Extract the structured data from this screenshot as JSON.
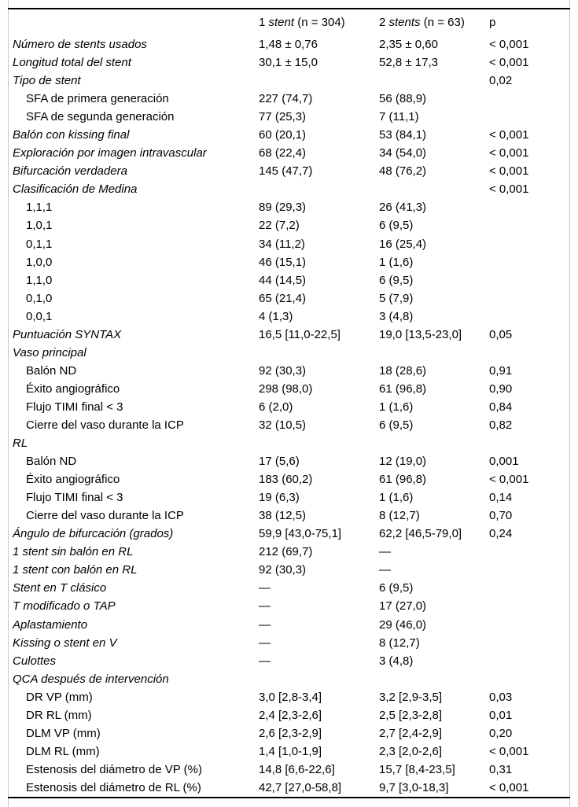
{
  "table": {
    "columns": {
      "group1": {
        "pre": "1 ",
        "italic": "stent",
        "post": " (n = 304)"
      },
      "group2": {
        "pre": "2 ",
        "italic": "stents",
        "post": " (n = 63)"
      },
      "p": "p"
    },
    "rows": [
      {
        "style": "main",
        "label": "Número de stents usados",
        "v1": "1,48 ± 0,76",
        "v2": "2,35 ± 0,60",
        "p": "< 0,001"
      },
      {
        "style": "main",
        "label": "Longitud total del stent",
        "v1": "30,1 ± 15,0",
        "v2": "52,8 ± 17,3",
        "p": "< 0,001"
      },
      {
        "style": "main",
        "label": "Tipo de stent",
        "v1": "",
        "v2": "",
        "p": "0,02"
      },
      {
        "style": "sub",
        "label": "SFA de primera generación",
        "v1": "227 (74,7)",
        "v2": "56 (88,9)",
        "p": ""
      },
      {
        "style": "sub",
        "label": "SFA de segunda generación",
        "v1": "77 (25,3)",
        "v2": "7 (11,1)",
        "p": ""
      },
      {
        "style": "main",
        "label": "Balón con kissing final",
        "v1": "60 (20,1)",
        "v2": "53 (84,1)",
        "p": "< 0,001"
      },
      {
        "style": "main",
        "label": "Exploración por imagen intravascular",
        "v1": "68 (22,4)",
        "v2": "34 (54,0)",
        "p": "< 0,001"
      },
      {
        "style": "main",
        "label": "Bifurcación verdadera",
        "v1": "145 (47,7)",
        "v2": "48 (76,2)",
        "p": "< 0,001"
      },
      {
        "style": "main",
        "label": "Clasificación de Medina",
        "v1": "",
        "v2": "",
        "p": "< 0,001"
      },
      {
        "style": "sub",
        "label": "1,1,1",
        "v1": "89 (29,3)",
        "v2": "26 (41,3)",
        "p": ""
      },
      {
        "style": "sub",
        "label": "1,0,1",
        "v1": "22 (7,2)",
        "v2": "6 (9,5)",
        "p": ""
      },
      {
        "style": "sub",
        "label": "0,1,1",
        "v1": "34 (11,2)",
        "v2": "16 (25,4)",
        "p": ""
      },
      {
        "style": "sub",
        "label": "1,0,0",
        "v1": "46 (15,1)",
        "v2": "1 (1,6)",
        "p": ""
      },
      {
        "style": "sub",
        "label": "1,1,0",
        "v1": "44 (14,5)",
        "v2": "6 (9,5)",
        "p": ""
      },
      {
        "style": "sub",
        "label": "0,1,0",
        "v1": "65 (21,4)",
        "v2": "5 (7,9)",
        "p": ""
      },
      {
        "style": "sub",
        "label": "0,0,1",
        "v1": "4 (1,3)",
        "v2": "3 (4,8)",
        "p": ""
      },
      {
        "style": "main",
        "label": "Puntuación SYNTAX",
        "v1": "16,5 [11,0-22,5]",
        "v2": "19,0 [13,5-23,0]",
        "p": "0,05"
      },
      {
        "style": "main",
        "label": "Vaso principal",
        "v1": "",
        "v2": "",
        "p": ""
      },
      {
        "style": "sub",
        "label": "Balón ND",
        "v1": "92 (30,3)",
        "v2": "18 (28,6)",
        "p": "0,91"
      },
      {
        "style": "sub",
        "label": "Éxito angiográfico",
        "v1": "298 (98,0)",
        "v2": "61 (96,8)",
        "p": "0,90"
      },
      {
        "style": "sub",
        "label": "Flujo TIMI final < 3",
        "v1": "6 (2,0)",
        "v2": "1 (1,6)",
        "p": "0,84"
      },
      {
        "style": "sub",
        "label": "Cierre del vaso durante la ICP",
        "v1": "32 (10,5)",
        "v2": "6 (9,5)",
        "p": "0,82"
      },
      {
        "style": "main",
        "label": "RL",
        "v1": "",
        "v2": "",
        "p": ""
      },
      {
        "style": "sub",
        "label": "Balón ND",
        "v1": "17 (5,6)",
        "v2": "12 (19,0)",
        "p": "0,001"
      },
      {
        "style": "sub",
        "label": "Éxito angiográfico",
        "v1": "183 (60,2)",
        "v2": "61 (96,8)",
        "p": "< 0,001"
      },
      {
        "style": "sub",
        "label": "Flujo TIMI final < 3",
        "v1": "19 (6,3)",
        "v2": "1 (1,6)",
        "p": "0,14"
      },
      {
        "style": "sub",
        "label": "Cierre del vaso durante la ICP",
        "v1": "38 (12,5)",
        "v2": "8 (12,7)",
        "p": "0,70"
      },
      {
        "style": "main",
        "label": "Ángulo de bifurcación (grados)",
        "v1": "59,9 [43,0-75,1]",
        "v2": "62,2 [46,5-79,0]",
        "p": "0,24"
      },
      {
        "style": "main",
        "label": "1 stent sin balón en RL",
        "v1": "212 (69,7)",
        "v2": "—",
        "p": ""
      },
      {
        "style": "main",
        "label": "1 stent con balón en RL",
        "v1": "92 (30,3)",
        "v2": "—",
        "p": ""
      },
      {
        "style": "main",
        "label": "Stent en T clásico",
        "v1": "—",
        "v2": "6 (9,5)",
        "p": ""
      },
      {
        "style": "main",
        "label": "T modificado o TAP",
        "v1": "—",
        "v2": "17 (27,0)",
        "p": ""
      },
      {
        "style": "main",
        "label": "Aplastamiento",
        "v1": "—",
        "v2": "29 (46,0)",
        "p": ""
      },
      {
        "style": "main",
        "label": "Kissing o stent en V",
        "v1": "—",
        "v2": "8 (12,7)",
        "p": ""
      },
      {
        "style": "main",
        "label": "Culottes",
        "v1": "—",
        "v2": "3 (4,8)",
        "p": ""
      },
      {
        "style": "main",
        "label": "QCA después de intervención",
        "v1": "",
        "v2": "",
        "p": ""
      },
      {
        "style": "sub",
        "label": "DR VP (mm)",
        "v1": "3,0 [2,8-3,4]",
        "v2": "3,2 [2,9-3,5]",
        "p": "0,03"
      },
      {
        "style": "sub",
        "label": "DR RL (mm)",
        "v1": "2,4 [2,3-2,6]",
        "v2": "2,5 [2,3-2,8]",
        "p": "0,01"
      },
      {
        "style": "sub",
        "label": "DLM VP (mm)",
        "v1": "2,6 [2,3-2,9]",
        "v2": "2,7 [2,4-2,9]",
        "p": "0,20"
      },
      {
        "style": "sub",
        "label": "DLM RL (mm)",
        "v1": "1,4 [1,0-1,9]",
        "v2": "2,3 [2,0-2,6]",
        "p": "< 0,001"
      },
      {
        "style": "sub",
        "label": "Estenosis del diámetro de VP (%)",
        "v1": "14,8 [6,6-22,6]",
        "v2": "15,7 [8,4-23,5]",
        "p": "0,31"
      },
      {
        "style": "sub",
        "label": "Estenosis del diámetro de RL (%)",
        "v1": "42,7 [27,0-58,8]",
        "v2": "9,7 [3,0-18,3]",
        "p": "< 0,001"
      }
    ]
  },
  "colors": {
    "text": "#000000",
    "rule": "#000000",
    "side_border": "#c6c6c6",
    "background": "#ffffff"
  }
}
